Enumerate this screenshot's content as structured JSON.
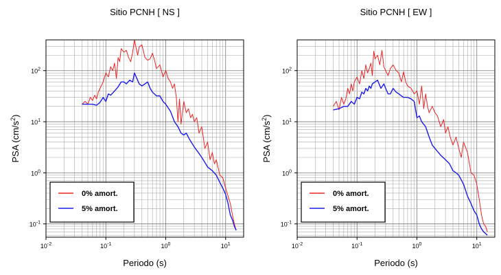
{
  "chart_data": [
    {
      "type": "line",
      "title": "Sitio PCNH [ NS ]",
      "xlabel": "Periodo (s)",
      "ylabel_text": "PSA (cm/s",
      "ylabel_exp": "2",
      "ylabel_close": ")",
      "xscale": "log",
      "yscale": "log",
      "xlim": [
        0.01,
        20
      ],
      "ylim": [
        0.055,
        400
      ],
      "grid": true,
      "legend_position": "bottom-left",
      "x_ticks": [
        {
          "base": "10",
          "exp": "-2"
        },
        {
          "base": "10",
          "exp": "-1"
        },
        {
          "base": "10",
          "exp": "0"
        },
        {
          "base": "10",
          "exp": "1"
        }
      ],
      "y_ticks": [
        {
          "base": "10",
          "exp": "-1"
        },
        {
          "base": "10",
          "exp": "0"
        },
        {
          "base": "10",
          "exp": "1"
        },
        {
          "base": "10",
          "exp": "2"
        }
      ],
      "series": [
        {
          "name": "0% amort.",
          "color": "#ee2222",
          "x": [
            0.04,
            0.045,
            0.05,
            0.055,
            0.06,
            0.065,
            0.07,
            0.075,
            0.08,
            0.09,
            0.1,
            0.11,
            0.12,
            0.13,
            0.14,
            0.15,
            0.16,
            0.17,
            0.18,
            0.2,
            0.22,
            0.24,
            0.26,
            0.28,
            0.3,
            0.32,
            0.34,
            0.36,
            0.4,
            0.45,
            0.5,
            0.55,
            0.6,
            0.65,
            0.7,
            0.8,
            0.9,
            1.0,
            1.1,
            1.2,
            1.3,
            1.4,
            1.5,
            1.6,
            1.7,
            1.8,
            2.0,
            2.2,
            2.4,
            2.6,
            2.8,
            3.0,
            3.3,
            3.6,
            4.0,
            4.5,
            5.0,
            5.5,
            6.0,
            6.5,
            7.0,
            8.0,
            9.0,
            10.0,
            11.0,
            12.0,
            13.0,
            14.0,
            15.0
          ],
          "y": [
            22,
            25,
            22,
            30,
            26,
            33,
            28,
            38,
            45,
            60,
            90,
            75,
            120,
            100,
            140,
            70,
            180,
            150,
            270,
            230,
            250,
            180,
            150,
            230,
            400,
            280,
            200,
            290,
            320,
            180,
            160,
            170,
            220,
            160,
            110,
            130,
            75,
            100,
            70,
            60,
            45,
            55,
            30,
            10,
            28,
            9,
            25,
            15,
            18,
            12,
            14,
            10,
            12,
            6,
            8,
            3,
            4,
            1.8,
            2.5,
            1.5,
            1.8,
            0.9,
            0.8,
            0.5,
            0.35,
            0.25,
            0.15,
            0.1,
            0.075
          ]
        },
        {
          "name": "5% amort.",
          "color": "#1a1aee",
          "x": [
            0.04,
            0.05,
            0.06,
            0.07,
            0.08,
            0.09,
            0.1,
            0.11,
            0.12,
            0.14,
            0.16,
            0.18,
            0.2,
            0.22,
            0.25,
            0.28,
            0.3,
            0.33,
            0.36,
            0.4,
            0.45,
            0.5,
            0.55,
            0.6,
            0.7,
            0.8,
            0.9,
            1.0,
            1.2,
            1.4,
            1.6,
            1.8,
            2.0,
            2.2,
            2.5,
            3.0,
            3.5,
            4.0,
            4.5,
            5.0,
            6.0,
            7.0,
            8.0,
            9.0,
            10.0,
            11.0,
            12.0,
            13.0,
            14.0,
            15.0
          ],
          "y": [
            22,
            22,
            22,
            21,
            24,
            30,
            25,
            35,
            33,
            40,
            48,
            60,
            60,
            55,
            65,
            60,
            90,
            70,
            55,
            50,
            55,
            60,
            45,
            38,
            32,
            32,
            25,
            22,
            16,
            10,
            8,
            6,
            5.5,
            6,
            4.5,
            3.2,
            2.5,
            2,
            1.6,
            1.3,
            1.1,
            0.9,
            0.65,
            0.5,
            0.38,
            0.25,
            0.15,
            0.12,
            0.09,
            0.075
          ]
        }
      ]
    },
    {
      "type": "line",
      "title": "Sitio PCNH [ EW ]",
      "xlabel": "Periodo (s)",
      "ylabel_text": "PSA (cm/s",
      "ylabel_exp": "2",
      "ylabel_close": ")",
      "xscale": "log",
      "yscale": "log",
      "xlim": [
        0.01,
        20
      ],
      "ylim": [
        0.055,
        400
      ],
      "grid": true,
      "legend_position": "bottom-left",
      "x_ticks": [
        {
          "base": "10",
          "exp": "-2"
        },
        {
          "base": "10",
          "exp": "-1"
        },
        {
          "base": "10",
          "exp": "0"
        },
        {
          "base": "10",
          "exp": "1"
        }
      ],
      "y_ticks": [
        {
          "base": "10",
          "exp": "-1"
        },
        {
          "base": "10",
          "exp": "0"
        },
        {
          "base": "10",
          "exp": "1"
        },
        {
          "base": "10",
          "exp": "2"
        }
      ],
      "series": [
        {
          "name": "0% amort.",
          "color": "#ee2222",
          "x": [
            0.04,
            0.045,
            0.05,
            0.055,
            0.06,
            0.065,
            0.07,
            0.075,
            0.08,
            0.085,
            0.09,
            0.1,
            0.11,
            0.12,
            0.13,
            0.14,
            0.15,
            0.16,
            0.17,
            0.18,
            0.19,
            0.2,
            0.22,
            0.24,
            0.26,
            0.28,
            0.3,
            0.33,
            0.36,
            0.4,
            0.45,
            0.5,
            0.55,
            0.6,
            0.65,
            0.7,
            0.8,
            0.9,
            1.0,
            1.1,
            1.2,
            1.3,
            1.4,
            1.5,
            1.6,
            1.8,
            2.0,
            2.2,
            2.5,
            2.8,
            3.0,
            3.3,
            3.6,
            4.0,
            4.5,
            5.0,
            5.5,
            6.0,
            7.0,
            8.0,
            9.0,
            10.0,
            11.0,
            12.0,
            13.0,
            14.0,
            15.0
          ],
          "y": [
            20,
            25,
            17,
            30,
            22,
            28,
            45,
            35,
            55,
            40,
            60,
            75,
            55,
            100,
            70,
            130,
            90,
            110,
            140,
            80,
            240,
            170,
            200,
            130,
            250,
            120,
            100,
            80,
            110,
            130,
            100,
            90,
            60,
            95,
            60,
            50,
            45,
            35,
            40,
            22,
            50,
            18,
            35,
            20,
            15,
            20,
            15,
            13,
            8,
            11,
            6,
            8,
            5,
            3.5,
            5,
            3,
            2,
            4,
            2.5,
            1,
            0.9,
            0.6,
            0.3,
            0.15,
            0.1,
            0.09,
            0.07
          ]
        },
        {
          "name": "5% amort.",
          "color": "#1a1aee",
          "x": [
            0.04,
            0.05,
            0.06,
            0.07,
            0.08,
            0.09,
            0.1,
            0.11,
            0.12,
            0.13,
            0.14,
            0.15,
            0.16,
            0.17,
            0.18,
            0.2,
            0.22,
            0.25,
            0.28,
            0.3,
            0.33,
            0.36,
            0.4,
            0.45,
            0.5,
            0.55,
            0.6,
            0.7,
            0.8,
            0.9,
            1.0,
            1.1,
            1.2,
            1.4,
            1.6,
            1.8,
            2.0,
            2.5,
            3.0,
            3.5,
            4.0,
            4.5,
            5.0,
            6.0,
            7.0,
            8.0,
            9.0,
            10.0,
            11.0,
            12.0,
            13.0,
            14.0,
            15.0
          ],
          "y": [
            17,
            18,
            20,
            20,
            25,
            22,
            30,
            28,
            38,
            35,
            45,
            40,
            50,
            45,
            55,
            60,
            65,
            45,
            55,
            45,
            35,
            35,
            45,
            38,
            35,
            32,
            30,
            30,
            28,
            25,
            12,
            13,
            10,
            8,
            5,
            3.5,
            3,
            2.2,
            1.8,
            1.5,
            1.1,
            1,
            0.9,
            0.6,
            0.35,
            0.25,
            0.18,
            0.15,
            0.1,
            0.08,
            0.07,
            0.065,
            0.06
          ]
        }
      ]
    }
  ]
}
